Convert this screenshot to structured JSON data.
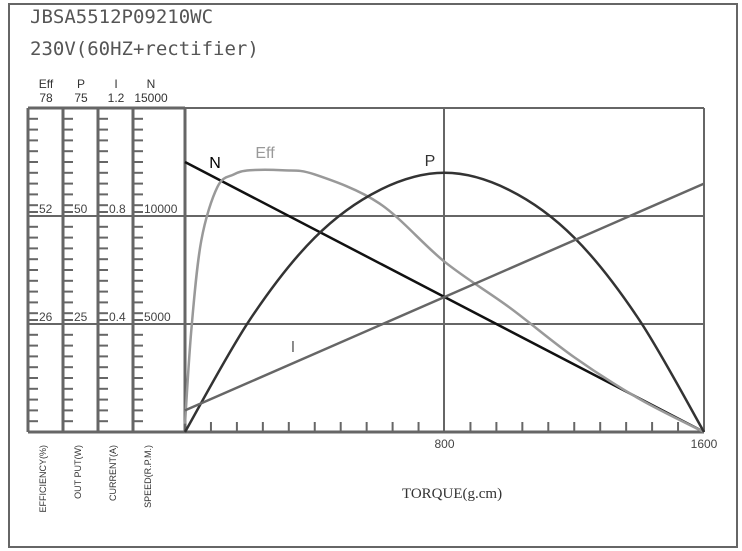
{
  "header": {
    "model": "JBSA5512P09210WC",
    "supply": "230V(60HZ+rectifier)"
  },
  "chart_data": {
    "type": "line",
    "xlabel": "TORQUE(g.cm)",
    "xlim": [
      0,
      1600
    ],
    "x_ticks": [
      "800",
      "1600"
    ],
    "grid": true,
    "y_axes": [
      {
        "name": "Eff",
        "unit_label": "EFFICIENCY(%)",
        "max": "78",
        "ticks": [
          "52",
          "26"
        ],
        "range": [
          0,
          78
        ]
      },
      {
        "name": "P",
        "unit_label": "OUT PUT(W)",
        "max": "75",
        "ticks": [
          "50",
          "25"
        ],
        "range": [
          0,
          75
        ]
      },
      {
        "name": "I",
        "unit_label": "CURRENT(A)",
        "max": "1.2",
        "ticks": [
          "0.8",
          "0.4"
        ],
        "range": [
          0,
          1.2
        ]
      },
      {
        "name": "N",
        "unit_label": "SPEED(R.P.M.)",
        "max": "15000",
        "ticks": [
          "10000",
          "5000"
        ],
        "range": [
          0,
          15000
        ]
      }
    ],
    "series": [
      {
        "name": "N",
        "axis": 3,
        "color": "#111111",
        "x": [
          0,
          800,
          1600
        ],
        "y": [
          12500,
          6250,
          0
        ]
      },
      {
        "name": "Eff",
        "axis": 0,
        "color": "#999999",
        "x": [
          0,
          20,
          50,
          100,
          150,
          200,
          300,
          400,
          600,
          800,
          1000,
          1200,
          1400,
          1600
        ],
        "y": [
          2,
          25,
          46,
          59,
          62,
          63,
          63,
          62,
          55,
          41,
          30,
          18,
          8,
          0
        ]
      },
      {
        "name": "P",
        "axis": 1,
        "color": "#333333",
        "x": [
          0,
          200,
          400,
          600,
          800,
          1000,
          1200,
          1400,
          1600
        ],
        "y": [
          0,
          26,
          45,
          56,
          60,
          56,
          45,
          26,
          0
        ]
      },
      {
        "name": "I",
        "axis": 2,
        "color": "#666666",
        "x": [
          0,
          1600
        ],
        "y": [
          0.08,
          0.92
        ]
      }
    ]
  }
}
